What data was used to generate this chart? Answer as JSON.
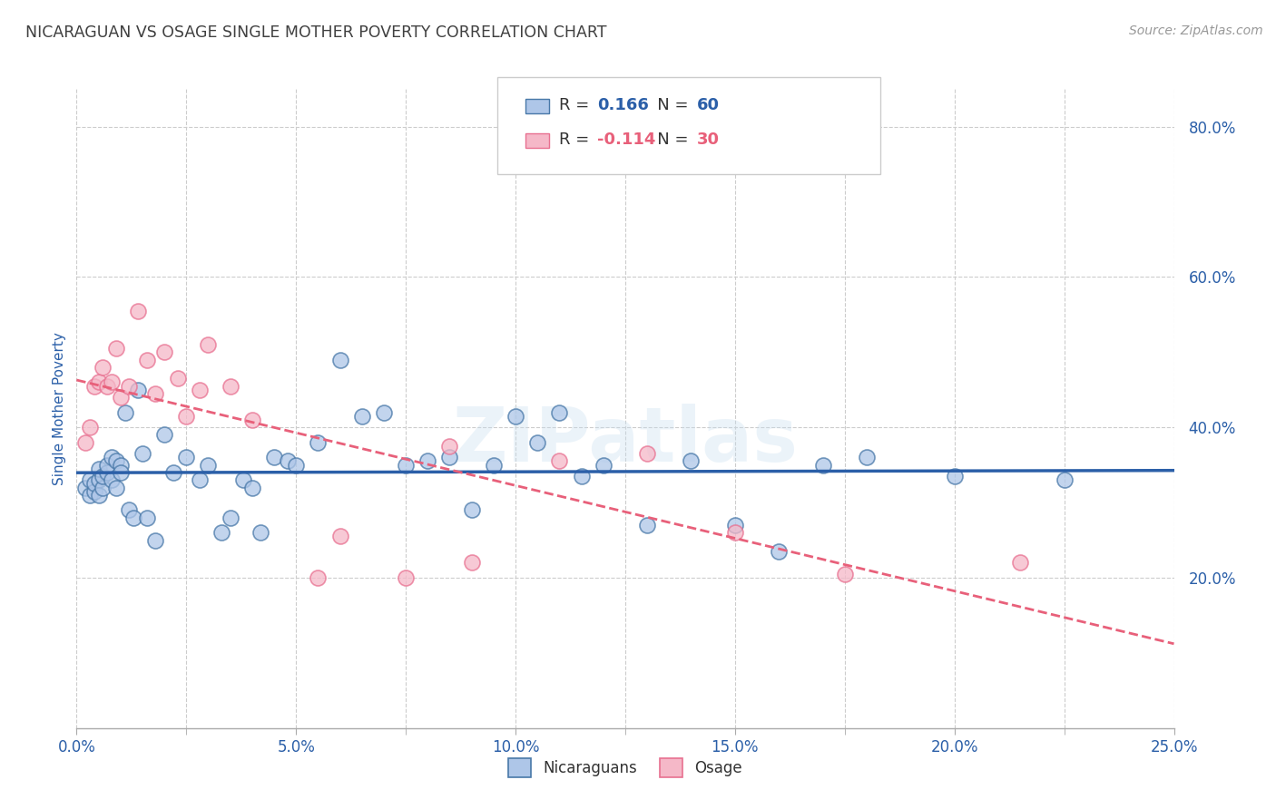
{
  "title": "NICARAGUAN VS OSAGE SINGLE MOTHER POVERTY CORRELATION CHART",
  "source": "Source: ZipAtlas.com",
  "ylabel": "Single Mother Poverty",
  "xlim": [
    0.0,
    0.25
  ],
  "ylim": [
    0.0,
    0.85
  ],
  "xtick_labels": [
    "0.0%",
    "",
    "5.0%",
    "",
    "10.0%",
    "",
    "15.0%",
    "",
    "20.0%",
    "",
    "25.0%"
  ],
  "xtick_values": [
    0.0,
    0.025,
    0.05,
    0.075,
    0.1,
    0.125,
    0.15,
    0.175,
    0.2,
    0.225,
    0.25
  ],
  "xtick_show": [
    0.0,
    0.05,
    0.1,
    0.15,
    0.2,
    0.25
  ],
  "xtick_show_labels": [
    "0.0%",
    "5.0%",
    "10.0%",
    "15.0%",
    "20.0%",
    "25.0%"
  ],
  "ytick_labels": [
    "20.0%",
    "40.0%",
    "60.0%",
    "80.0%"
  ],
  "ytick_values": [
    0.2,
    0.4,
    0.6,
    0.8
  ],
  "blue_color": "#aec6e8",
  "pink_color": "#f5b8c8",
  "blue_edge_color": "#4878a8",
  "pink_edge_color": "#e87090",
  "blue_line_color": "#2b5fa8",
  "pink_line_color": "#e8607a",
  "r_blue": "0.166",
  "n_blue": "60",
  "r_pink": "-0.114",
  "n_pink": "30",
  "legend_label_blue": "Nicaraguans",
  "legend_label_pink": "Osage",
  "blue_scatter_x": [
    0.002,
    0.003,
    0.003,
    0.004,
    0.004,
    0.005,
    0.005,
    0.005,
    0.006,
    0.006,
    0.007,
    0.007,
    0.008,
    0.008,
    0.009,
    0.009,
    0.01,
    0.01,
    0.011,
    0.012,
    0.013,
    0.014,
    0.015,
    0.016,
    0.018,
    0.02,
    0.022,
    0.025,
    0.028,
    0.03,
    0.033,
    0.035,
    0.038,
    0.04,
    0.042,
    0.045,
    0.048,
    0.05,
    0.055,
    0.06,
    0.065,
    0.07,
    0.075,
    0.08,
    0.085,
    0.09,
    0.095,
    0.1,
    0.105,
    0.11,
    0.115,
    0.12,
    0.13,
    0.14,
    0.15,
    0.16,
    0.17,
    0.18,
    0.2,
    0.225
  ],
  "blue_scatter_y": [
    0.32,
    0.31,
    0.33,
    0.315,
    0.325,
    0.33,
    0.31,
    0.345,
    0.32,
    0.335,
    0.34,
    0.35,
    0.36,
    0.33,
    0.32,
    0.355,
    0.35,
    0.34,
    0.42,
    0.29,
    0.28,
    0.45,
    0.365,
    0.28,
    0.25,
    0.39,
    0.34,
    0.36,
    0.33,
    0.35,
    0.26,
    0.28,
    0.33,
    0.32,
    0.26,
    0.36,
    0.355,
    0.35,
    0.38,
    0.49,
    0.415,
    0.42,
    0.35,
    0.355,
    0.36,
    0.29,
    0.35,
    0.415,
    0.38,
    0.42,
    0.335,
    0.35,
    0.27,
    0.355,
    0.27,
    0.235,
    0.35,
    0.36,
    0.335,
    0.33
  ],
  "pink_scatter_x": [
    0.002,
    0.003,
    0.004,
    0.005,
    0.006,
    0.007,
    0.008,
    0.009,
    0.01,
    0.012,
    0.014,
    0.016,
    0.018,
    0.02,
    0.023,
    0.025,
    0.028,
    0.03,
    0.035,
    0.04,
    0.055,
    0.06,
    0.075,
    0.085,
    0.09,
    0.11,
    0.13,
    0.15,
    0.175,
    0.215
  ],
  "pink_scatter_y": [
    0.38,
    0.4,
    0.455,
    0.46,
    0.48,
    0.455,
    0.46,
    0.505,
    0.44,
    0.455,
    0.555,
    0.49,
    0.445,
    0.5,
    0.465,
    0.415,
    0.45,
    0.51,
    0.455,
    0.41,
    0.2,
    0.255,
    0.2,
    0.375,
    0.22,
    0.355,
    0.365,
    0.26,
    0.205,
    0.22
  ],
  "background_color": "#ffffff",
  "grid_color": "#cccccc",
  "title_color": "#404040",
  "axis_label_color": "#2b5fa8",
  "tick_label_color": "#2b5fa8"
}
